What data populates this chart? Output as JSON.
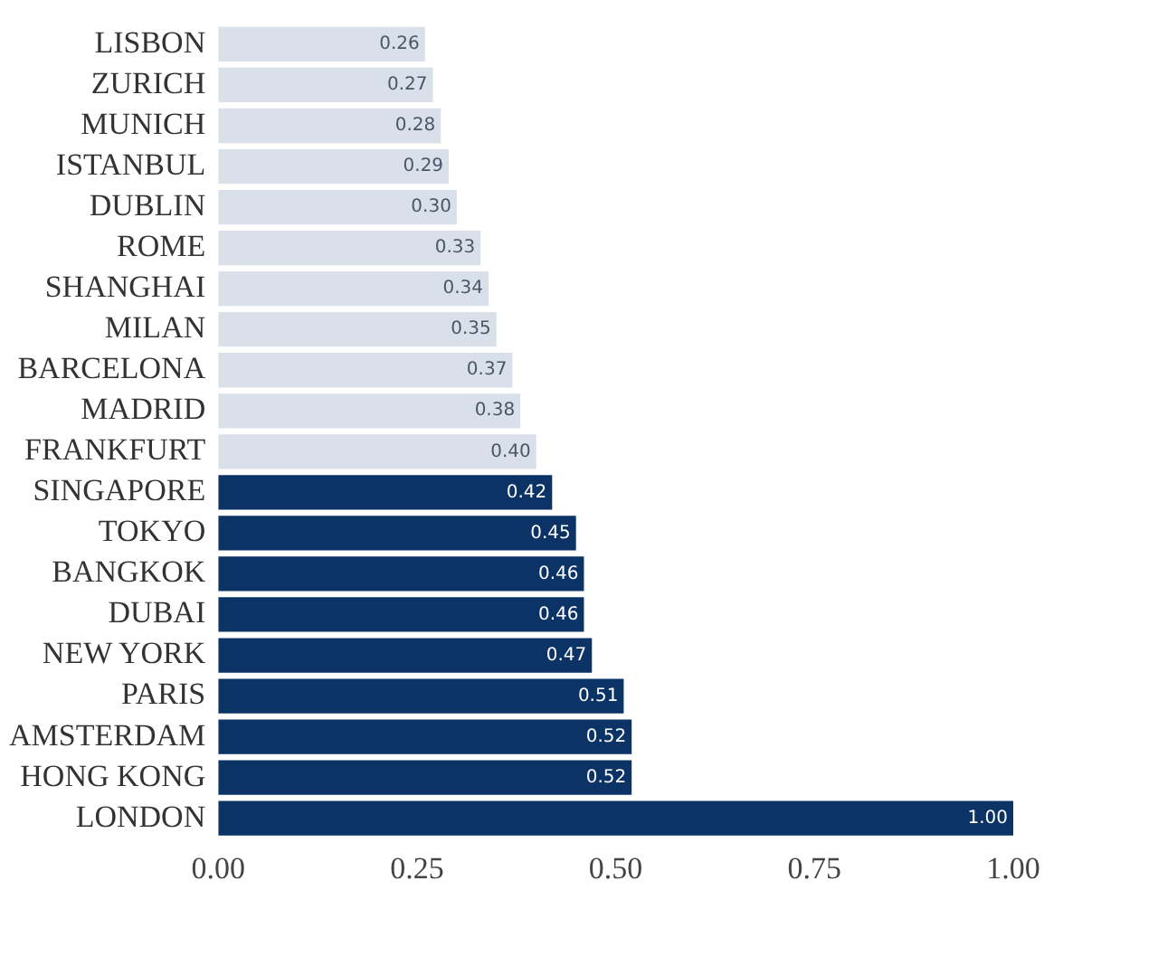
{
  "chart_data": {
    "type": "bar",
    "orientation": "horizontal",
    "categories": [
      "LISBON",
      "ZURICH",
      "MUNICH",
      "ISTANBUL",
      "DUBLIN",
      "ROME",
      "SHANGHAI",
      "MILAN",
      "BARCELONA",
      "MADRID",
      "FRANKFURT",
      "SINGAPORE",
      "TOKYO",
      "BANGKOK",
      "DUBAI",
      "NEW YORK",
      "PARIS",
      "AMSTERDAM",
      "HONG KONG",
      "LONDON"
    ],
    "values": [
      0.26,
      0.27,
      0.28,
      0.29,
      0.3,
      0.33,
      0.34,
      0.35,
      0.37,
      0.38,
      0.4,
      0.42,
      0.45,
      0.46,
      0.46,
      0.47,
      0.51,
      0.52,
      0.52,
      1.0
    ],
    "colors": [
      "#d9e0ea",
      "#d9e0ea",
      "#d9e0ea",
      "#d9e0ea",
      "#d9e0ea",
      "#d9e0ea",
      "#d9e0ea",
      "#d9e0ea",
      "#d9e0ea",
      "#d9e0ea",
      "#d9e0ea",
      "#0b3366",
      "#0b3366",
      "#0b3366",
      "#0b3366",
      "#0b3366",
      "#0b3366",
      "#0b3366",
      "#0b3366",
      "#0b3366"
    ],
    "value_labels": [
      "0.26",
      "0.27",
      "0.28",
      "0.29",
      "0.30",
      "0.33",
      "0.34",
      "0.35",
      "0.37",
      "0.38",
      "0.40",
      "0.42",
      "0.45",
      "0.46",
      "0.46",
      "0.47",
      "0.51",
      "0.52",
      "0.52",
      "1.00"
    ],
    "xlim": [
      0,
      1
    ],
    "xticks": [
      {
        "value": 0,
        "label": "0.00"
      },
      {
        "value": 0.25,
        "label": "0.25"
      },
      {
        "value": 0.5,
        "label": "0.50"
      },
      {
        "value": 0.75,
        "label": "0.75"
      },
      {
        "value": 1,
        "label": "1.00"
      }
    ],
    "grid": false,
    "legend": false
  }
}
